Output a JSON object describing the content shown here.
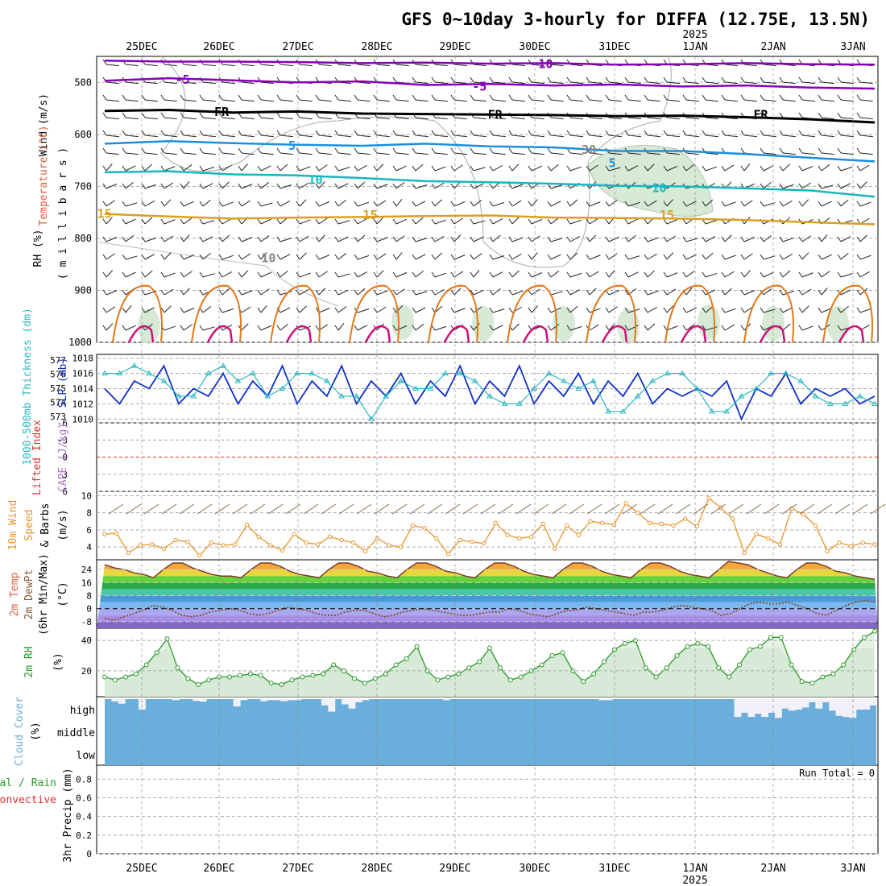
{
  "title": "GFS 0~10day 3-hourly for DIFFA (12.75E, 13.5N)",
  "dates": [
    "25DEC",
    "26DEC",
    "27DEC",
    "28DEC",
    "29DEC",
    "30DEC",
    "31DEC",
    "1JAN",
    "2JAN",
    "3JAN"
  ],
  "year_label": "2025",
  "colors": {
    "purple": "#8800bb",
    "black": "#000000",
    "blue": "#1a8fe0",
    "cyan": "#17b6c0",
    "gold": "#dca020",
    "orange": "#e07818",
    "magenta": "#d0107a",
    "green_fill": "#d6ead6",
    "slp": "#1030c8",
    "thickness": "#2ab8c0",
    "lifted": "#e03030",
    "wind10": "#e8942a",
    "rh2m": "#2a9a2a",
    "cloud": "#6aaedb",
    "precip_rain": "#2a9a2a",
    "precip_conv": "#e03030"
  },
  "panels": {
    "upper": {
      "labels": {
        "wind": "Wind (m/s)",
        "temperature": "Temperature (°C)",
        "rh": "RH (%)",
        "millibars": "( m i l l i b a r s )"
      },
      "ylim": [
        450,
        1000
      ],
      "yticks": [
        "500",
        "600",
        "700",
        "800",
        "900",
        "1000"
      ],
      "contour_labels": [
        {
          "text": "-10",
          "p": 465,
          "t": 0.57
        },
        {
          "text": "-5",
          "p": 495,
          "t": 0.11
        },
        {
          "text": "-5",
          "p": 508,
          "t": 0.49
        },
        {
          "text": "FR",
          "p": 557,
          "t": 0.16
        },
        {
          "text": "FR",
          "p": 562,
          "t": 0.51
        },
        {
          "text": "FR",
          "p": 562,
          "t": 0.85
        },
        {
          "text": "5",
          "p": 622,
          "t": 0.25
        },
        {
          "text": "5",
          "p": 655,
          "t": 0.66
        },
        {
          "text": "10",
          "p": 688,
          "t": 0.28
        },
        {
          "text": "10",
          "p": 703,
          "t": 0.72
        },
        {
          "text": "15",
          "p": 753,
          "t": 0.01
        },
        {
          "text": "15",
          "p": 755,
          "t": 0.35
        },
        {
          "text": "15",
          "p": 755,
          "t": 0.73
        },
        {
          "text": "30",
          "p": 630,
          "t": 0.63
        },
        {
          "text": "10",
          "p": 838,
          "t": 0.22
        }
      ],
      "isotherms": [
        {
          "label": "-10",
          "color": "purple",
          "pressure": [
            458,
            460,
            460,
            461,
            463,
            462,
            464,
            463,
            466,
            465,
            463,
            465,
            466
          ]
        },
        {
          "label": "-5",
          "color": "purple",
          "pressure": [
            497,
            492,
            496,
            500,
            498,
            505,
            503,
            506,
            504,
            508,
            506,
            510,
            512
          ]
        },
        {
          "label": "FR",
          "color": "black",
          "pressure": [
            555,
            553,
            558,
            556,
            560,
            561,
            562,
            563,
            565,
            564,
            567,
            571,
            577
          ]
        },
        {
          "label": "5",
          "color": "blue",
          "pressure": [
            618,
            613,
            617,
            620,
            622,
            618,
            623,
            625,
            632,
            632,
            638,
            645,
            652
          ]
        },
        {
          "label": "10",
          "color": "cyan",
          "pressure": [
            673,
            671,
            677,
            679,
            684,
            690,
            692,
            695,
            699,
            700,
            704,
            708,
            720
          ]
        },
        {
          "label": "15",
          "color": "gold",
          "pressure": [
            753,
            758,
            762,
            760,
            759,
            757,
            756,
            760,
            761,
            762,
            765,
            769,
            773
          ]
        }
      ]
    },
    "thickness_slp": {
      "labels": {
        "thickness": "1000-500mb Thickness (dm)",
        "slp": "SLP (mb)"
      },
      "thickness_ticks": [
        "577",
        "576",
        "575",
        "574",
        "573"
      ],
      "slp_ticks": [
        "1018",
        "1016",
        "1014",
        "1012",
        "1010"
      ],
      "slp_lim": [
        1009.5,
        1018.5
      ],
      "slp": [
        1014,
        1012,
        1015,
        1014,
        1017,
        1012,
        1014,
        1013,
        1016,
        1012,
        1015,
        1013,
        1017,
        1012,
        1015,
        1013,
        1017,
        1012,
        1015,
        1013,
        1016,
        1012,
        1015,
        1013,
        1017,
        1012,
        1015,
        1013,
        1017,
        1012,
        1015,
        1013,
        1016,
        1012,
        1015,
        1013,
        1016,
        1012,
        1014,
        1013,
        1014,
        1013,
        1015,
        1010,
        1014,
        1013,
        1016,
        1012,
        1014,
        1013,
        1014,
        1012,
        1013
      ],
      "thickness_slp_units": [
        1016,
        1016,
        1017,
        1016,
        1015,
        1013,
        1013,
        1016,
        1017,
        1015,
        1016,
        1013,
        1014,
        1016,
        1016,
        1015,
        1013,
        1013,
        1010,
        1013,
        1015,
        1014,
        1014,
        1016,
        1016,
        1015,
        1013,
        1012,
        1012,
        1014,
        1016,
        1015,
        1014,
        1015,
        1011,
        1011,
        1013,
        1015,
        1016,
        1016,
        1014,
        1011,
        1011,
        1013,
        1014,
        1016,
        1016,
        1015,
        1013,
        1012,
        1012,
        1013,
        1012
      ]
    },
    "cape": {
      "labels": {
        "lifted": "Lifted Index",
        "cape": "CAPE (J/kg)"
      },
      "ticks": [
        "6",
        "3",
        "0",
        "-3",
        "-6"
      ],
      "ylim": [
        -6,
        6
      ]
    },
    "wind10m": {
      "labels": {
        "wind": "10m Wind",
        "speed": "Speed",
        "barbs": "& Barbs",
        "unit": "(m/s)"
      },
      "ticks": [
        "10",
        "8",
        "6",
        "4"
      ],
      "ylim": [
        2.5,
        10.5
      ],
      "speed": [
        5.5,
        5.6,
        3.3,
        4.2,
        4.3,
        3.8,
        4.8,
        4.6,
        3.0,
        4.5,
        4.2,
        4.3,
        6.6,
        5.2,
        4.2,
        3.6,
        5.5,
        4.5,
        4.3,
        5.2,
        4.8,
        4.5,
        3.5,
        5.0,
        4.2,
        4.0,
        6.5,
        6.2,
        5.0,
        3.2,
        4.8,
        4.6,
        4.4,
        6.8,
        5.4,
        5.0,
        5.2,
        6.7,
        3.8,
        6.5,
        5.4,
        7.0,
        6.8,
        6.6,
        9.1,
        8.0,
        6.8,
        6.7,
        6.5,
        7.3,
        6.4,
        9.7,
        8.6,
        7.3,
        3.3,
        5.5,
        5.0,
        4.3,
        8.5,
        7.8,
        6.5,
        3.5,
        4.5,
        4.1,
        4.5,
        4.3
      ]
    },
    "temp2m": {
      "labels": {
        "temp": "2m Temp",
        "dewpt": "2m DewPt",
        "minmax": "(6hr Min/Max)",
        "unit": "(°C)"
      },
      "ticks": [
        "24",
        "16",
        "8",
        "0",
        "-8"
      ],
      "ylim": [
        -12,
        30
      ],
      "temp": [
        27,
        25,
        24,
        22,
        21,
        19,
        24,
        28,
        28,
        25,
        23,
        21,
        20,
        20,
        19,
        24,
        28,
        28,
        26,
        23,
        21,
        20,
        19,
        24,
        28,
        28,
        26,
        23,
        22,
        20,
        19,
        24,
        28,
        28,
        26,
        23,
        22,
        20,
        19,
        24,
        28,
        28,
        26,
        23,
        21,
        20,
        19,
        24,
        28,
        28,
        26,
        23,
        21,
        20,
        19,
        24,
        28,
        28,
        26,
        23,
        21,
        20,
        19,
        24,
        29,
        28,
        27,
        24,
        22,
        20,
        19,
        24,
        28,
        28,
        26,
        23,
        22,
        20,
        19,
        18
      ],
      "dewpt": [
        -6,
        -7,
        -5,
        -3,
        -1,
        2,
        1,
        -1,
        -4,
        -5,
        -4,
        -2,
        -1,
        0,
        -1,
        -3,
        -4,
        -3,
        -1,
        1,
        0,
        -1,
        -3,
        -4,
        -4,
        -2,
        -1,
        -1,
        -3,
        -5,
        -4,
        -2,
        -1,
        0,
        -1,
        -2,
        -3,
        -4,
        -4,
        -3,
        -2,
        -2,
        0,
        -1,
        -3,
        -4,
        -5,
        -3,
        -1,
        -1,
        1,
        0,
        -1,
        -2,
        -3,
        -4,
        -2,
        -2,
        -1,
        1,
        2,
        1,
        0,
        -1,
        -4,
        -3,
        0,
        3,
        4,
        3,
        3,
        4,
        2,
        0,
        -3,
        -4,
        -1,
        2,
        4,
        5,
        4
      ]
    },
    "rh2m": {
      "labels": {
        "rh": "2m RH",
        "unit": "(%)"
      },
      "ticks": [
        "40",
        "20"
      ],
      "ylim": [
        3,
        48
      ],
      "values": [
        16,
        14,
        16,
        18,
        24,
        32,
        41,
        22,
        15,
        11,
        14,
        16,
        16,
        17,
        18,
        17,
        12,
        11,
        14,
        16,
        17,
        18,
        24,
        20,
        15,
        12,
        15,
        18,
        24,
        28,
        36,
        20,
        14,
        16,
        18,
        22,
        26,
        35,
        22,
        14,
        16,
        20,
        24,
        30,
        32,
        20,
        13,
        18,
        26,
        34,
        38,
        40,
        22,
        16,
        22,
        30,
        36,
        38,
        36,
        22,
        16,
        24,
        34,
        36,
        42,
        42,
        24,
        13,
        12,
        16,
        18,
        24,
        34,
        42,
        46
      ]
    },
    "cloud": {
      "labels": {
        "cloud": "Cloud Cover",
        "unit": "(%)",
        "high": "high",
        "middle": "middle",
        "low": "low"
      },
      "high_gaps": [
        0,
        0.11,
        0.22,
        0,
        0,
        0.5,
        0,
        0,
        0,
        0,
        0.05,
        0,
        0,
        0.08,
        0.12,
        0,
        0,
        0,
        0,
        0.35,
        0.05,
        0,
        0,
        0.1,
        0.05,
        0.05,
        0.1,
        0.05,
        0.05,
        0,
        0,
        0,
        0.3,
        0.6,
        0,
        0.25,
        0.45,
        0.15,
        0.05,
        0,
        0,
        0,
        0,
        0,
        0,
        0,
        0,
        0,
        0,
        0,
        0.05,
        0,
        0,
        0,
        0,
        0,
        0,
        0,
        0,
        0,
        0,
        0,
        0,
        0,
        0,
        0,
        0,
        0,
        0,
        0,
        0,
        0,
        0,
        0.05,
        0.05,
        0,
        0,
        0,
        0,
        0,
        0,
        0,
        0,
        0,
        0,
        0,
        0,
        0,
        0,
        0,
        0,
        0,
        0,
        0.85,
        0.65,
        0.85,
        0.7,
        0.85,
        0.65,
        0.9,
        0.45,
        0.55,
        0.5,
        0.4,
        0.15,
        0.45,
        0.15,
        0.55,
        0.8,
        0.85,
        0.9,
        0.5,
        0.5,
        0.3
      ]
    },
    "precip": {
      "labels": {
        "total_rain": "Total / Rain",
        "convective": "Convective",
        "precip": "3hr Precip (mm)",
        "run_total": "Run Total = 0"
      },
      "ticks": [
        "0.8",
        "0.6",
        "0.4",
        "0.2",
        "0"
      ],
      "ylim": [
        0,
        0.95
      ]
    }
  }
}
